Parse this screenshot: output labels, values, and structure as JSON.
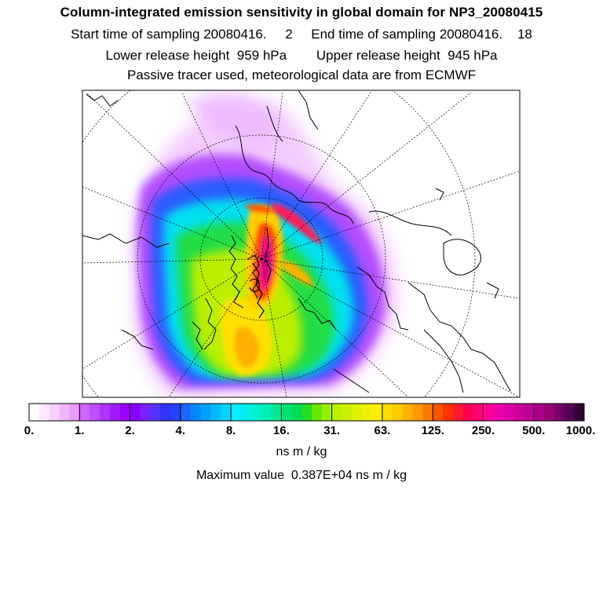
{
  "header": {
    "title": "Column-integrated emission sensitivity in global domain for NP3_20080415",
    "sampling": "Start time of sampling 20080416.     2     End time of sampling 20080416.    18",
    "release": "Lower release height  959 hPa        Upper release height  945 hPa",
    "tracer": "Passive tracer used, meteorological data are from ECMWF"
  },
  "colorbar": {
    "ticks": [
      "0.",
      "1.",
      "2.",
      "4.",
      "8.",
      "16.",
      "31.",
      "63.",
      "125.",
      "250.",
      "500.",
      "1000."
    ],
    "units": "ns m / kg",
    "colors": [
      [
        "#ffffff",
        "#fbe8ff",
        "#f6d0ff",
        "#f0b5ff",
        "#e89cff"
      ],
      [
        "#cc66ff",
        "#c04dff",
        "#b033ff",
        "#a01aff",
        "#9900ff"
      ],
      [
        "#8800ff",
        "#7722ff",
        "#5533ff",
        "#3333ff",
        "#2244ff"
      ],
      [
        "#1a66ff",
        "#0088ff",
        "#00a0ff",
        "#00bbff",
        "#00d4ff"
      ],
      [
        "#00eeff",
        "#00f0e8",
        "#00f0cc",
        "#00eeb0",
        "#00e896"
      ],
      [
        "#00e070",
        "#00dd55",
        "#22dd22",
        "#66e600",
        "#99ee00"
      ],
      [
        "#bbf000",
        "#ccf000",
        "#ddf200",
        "#eef200",
        "#ffee00"
      ],
      [
        "#ffdd00",
        "#ffcc00",
        "#ffb000",
        "#ff9900",
        "#ff7700"
      ],
      [
        "#ff5500",
        "#ff3300",
        "#ff1a33",
        "#ff0055",
        "#ff0077"
      ],
      [
        "#ff0099",
        "#ee00aa",
        "#dd00aa",
        "#cc0099",
        "#bb0099"
      ],
      [
        "#aa0088",
        "#990077",
        "#770066",
        "#550055",
        "#330033"
      ]
    ]
  },
  "footer": {
    "max_value": "Maximum value  0.387E+04 ns m / kg"
  }
}
